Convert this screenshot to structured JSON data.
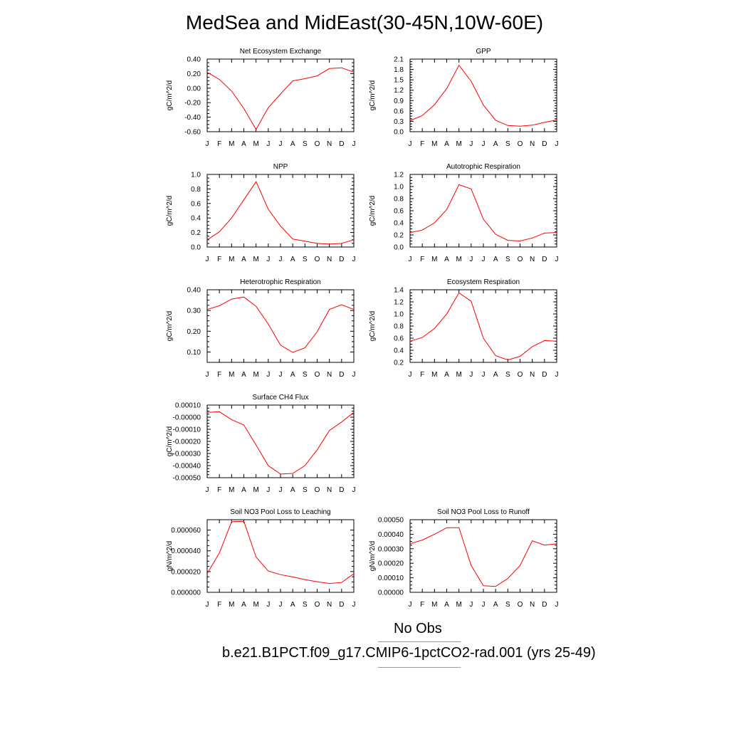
{
  "title": "MedSea and MidEast(30-45N,10W-60E)",
  "months": [
    "J",
    "F",
    "M",
    "A",
    "M",
    "J",
    "J",
    "A",
    "S",
    "O",
    "N",
    "D",
    "J"
  ],
  "colors": {
    "model": "#ff0000",
    "obs_legend": "#8a8aff",
    "model_legend": "#ff7070"
  },
  "legend": {
    "obs_label": "No Obs",
    "model_label": "b.e21.B1PCT.f09_g17.CMIP6-1pctCO2-rad.001 (yrs 25-49)"
  },
  "chart_data": [
    {
      "type": "line",
      "title": "Net Ecosystem Exchange",
      "ylabel": "gC/m^2/d",
      "ylim": [
        -0.6,
        0.4
      ],
      "yticks": [
        -0.6,
        -0.4,
        -0.2,
        0.0,
        0.2,
        0.4
      ],
      "ytick_labels": [
        "-0.60",
        "-0.40",
        "-0.20",
        "0.00",
        "0.20",
        "0.40"
      ],
      "categories": [
        "J",
        "F",
        "M",
        "A",
        "M",
        "J",
        "J",
        "A",
        "S",
        "O",
        "N",
        "D",
        "J"
      ],
      "values": [
        0.22,
        0.12,
        -0.04,
        -0.28,
        -0.57,
        -0.27,
        -0.08,
        0.1,
        0.13,
        0.17,
        0.27,
        0.28,
        0.22
      ]
    },
    {
      "type": "line",
      "title": "GPP",
      "ylabel": "gC/m^2/d",
      "ylim": [
        0.0,
        2.1
      ],
      "yticks": [
        0.0,
        0.3,
        0.6,
        0.9,
        1.2,
        1.5,
        1.8,
        2.1
      ],
      "ytick_labels": [
        "0.0",
        "0.3",
        "0.6",
        "0.9",
        "1.2",
        "1.5",
        "1.8",
        "2.1"
      ],
      "categories": [
        "J",
        "F",
        "M",
        "A",
        "M",
        "J",
        "J",
        "A",
        "S",
        "O",
        "N",
        "D",
        "J"
      ],
      "values": [
        0.32,
        0.47,
        0.78,
        1.25,
        1.92,
        1.46,
        0.77,
        0.33,
        0.18,
        0.16,
        0.19,
        0.27,
        0.34
      ]
    },
    {
      "type": "line",
      "title": "NPP",
      "ylabel": "gC/m^2/d",
      "ylim": [
        0.0,
        1.0
      ],
      "yticks": [
        0.0,
        0.2,
        0.4,
        0.6,
        0.8,
        1.0
      ],
      "ytick_labels": [
        "0.0",
        "0.2",
        "0.4",
        "0.6",
        "0.8",
        "1.0"
      ],
      "categories": [
        "J",
        "F",
        "M",
        "A",
        "M",
        "J",
        "J",
        "A",
        "S",
        "O",
        "N",
        "D",
        "J"
      ],
      "values": [
        0.1,
        0.21,
        0.4,
        0.65,
        0.9,
        0.52,
        0.29,
        0.11,
        0.08,
        0.05,
        0.04,
        0.05,
        0.1
      ]
    },
    {
      "type": "line",
      "title": "Autotrophic Respiration",
      "ylabel": "gC/m^2/d",
      "ylim": [
        0.0,
        1.2
      ],
      "yticks": [
        0.0,
        0.2,
        0.4,
        0.6,
        0.8,
        1.0,
        1.2
      ],
      "ytick_labels": [
        "0.0",
        "0.2",
        "0.4",
        "0.6",
        "0.8",
        "1.0",
        "1.2"
      ],
      "categories": [
        "J",
        "F",
        "M",
        "A",
        "M",
        "J",
        "J",
        "A",
        "S",
        "O",
        "N",
        "D",
        "J"
      ],
      "values": [
        0.24,
        0.28,
        0.4,
        0.62,
        1.03,
        0.96,
        0.46,
        0.21,
        0.11,
        0.1,
        0.15,
        0.23,
        0.24
      ]
    },
    {
      "type": "line",
      "title": "Heterotrophic Respiration",
      "ylabel": "gC/m^2/d",
      "ylim": [
        0.05,
        0.4
      ],
      "yticks": [
        0.1,
        0.2,
        0.3,
        0.4
      ],
      "ytick_labels": [
        "0.10",
        "0.20",
        "0.30",
        "0.40"
      ],
      "categories": [
        "J",
        "F",
        "M",
        "A",
        "M",
        "J",
        "J",
        "A",
        "S",
        "O",
        "N",
        "D",
        "J"
      ],
      "values": [
        0.305,
        0.323,
        0.355,
        0.365,
        0.32,
        0.235,
        0.133,
        0.098,
        0.12,
        0.198,
        0.305,
        0.328,
        0.305
      ]
    },
    {
      "type": "line",
      "title": "Ecosystem Respiration",
      "ylabel": "gC/m^2/d",
      "ylim": [
        0.2,
        1.4
      ],
      "yticks": [
        0.2,
        0.4,
        0.6,
        0.8,
        1.0,
        1.2,
        1.4
      ],
      "ytick_labels": [
        "0.2",
        "0.4",
        "0.6",
        "0.8",
        "1.0",
        "1.2",
        "1.4"
      ],
      "categories": [
        "J",
        "F",
        "M",
        "A",
        "M",
        "J",
        "J",
        "A",
        "S",
        "O",
        "N",
        "D",
        "J"
      ],
      "values": [
        0.55,
        0.61,
        0.76,
        1.0,
        1.35,
        1.21,
        0.6,
        0.31,
        0.24,
        0.3,
        0.46,
        0.56,
        0.55
      ]
    },
    {
      "type": "line",
      "title": "Surface CH4 Flux",
      "ylabel": "gC/m^2/d",
      "ylim": [
        -0.0005,
        0.0001
      ],
      "yticks": [
        -0.0005,
        -0.0004,
        -0.0003,
        -0.0002,
        -0.0001,
        0.0,
        0.0001
      ],
      "ytick_labels": [
        "-0.00050",
        "-0.00040",
        "-0.00030",
        "-0.00020",
        "-0.00010",
        "-0.00000",
        "0.00010"
      ],
      "categories": [
        "J",
        "F",
        "M",
        "A",
        "M",
        "J",
        "J",
        "A",
        "S",
        "O",
        "N",
        "D",
        "J"
      ],
      "values": [
        4e-05,
        4.5e-05,
        -2e-05,
        -6.5e-05,
        -0.00023,
        -0.0004,
        -0.00047,
        -0.000465,
        -0.0004,
        -0.00027,
        -0.00011,
        -4e-05,
        4e-05
      ]
    },
    {
      "type": "line",
      "title": "Soil NO3 Pool Loss to Leaching",
      "ylabel": "gN/m^2/d",
      "ylim": [
        0.0,
        7e-05
      ],
      "yticks": [
        0.0,
        2e-05,
        4e-05,
        6e-05
      ],
      "ytick_labels": [
        "0.000000",
        "0.000020",
        "0.000040",
        "0.000060"
      ],
      "categories": [
        "J",
        "F",
        "M",
        "A",
        "M",
        "J",
        "J",
        "A",
        "S",
        "O",
        "N",
        "D",
        "J"
      ],
      "values": [
        1.8e-05,
        3.8e-05,
        6.8e-05,
        6.85e-05,
        3.4e-05,
        2.05e-05,
        1.7e-05,
        1.48e-05,
        1.23e-05,
        1.02e-05,
        8.5e-06,
        9.5e-06,
        1.8e-05
      ]
    },
    {
      "type": "line",
      "title": "Soil NO3 Pool Loss to Runoff",
      "ylabel": "gN/m^2/d",
      "ylim": [
        0.0,
        0.0005
      ],
      "yticks": [
        0.0,
        0.0001,
        0.0002,
        0.0003,
        0.0004,
        0.0005
      ],
      "ytick_labels": [
        "0.00000",
        "0.00010",
        "0.00020",
        "0.00030",
        "0.00040",
        "0.00050"
      ],
      "categories": [
        "J",
        "F",
        "M",
        "A",
        "M",
        "J",
        "J",
        "A",
        "S",
        "O",
        "N",
        "D",
        "J"
      ],
      "values": [
        0.000335,
        0.00036,
        0.0004,
        0.000445,
        0.000445,
        0.000185,
        4.5e-05,
        4e-05,
        9.5e-05,
        0.000185,
        0.000355,
        0.000325,
        0.000335
      ]
    }
  ]
}
